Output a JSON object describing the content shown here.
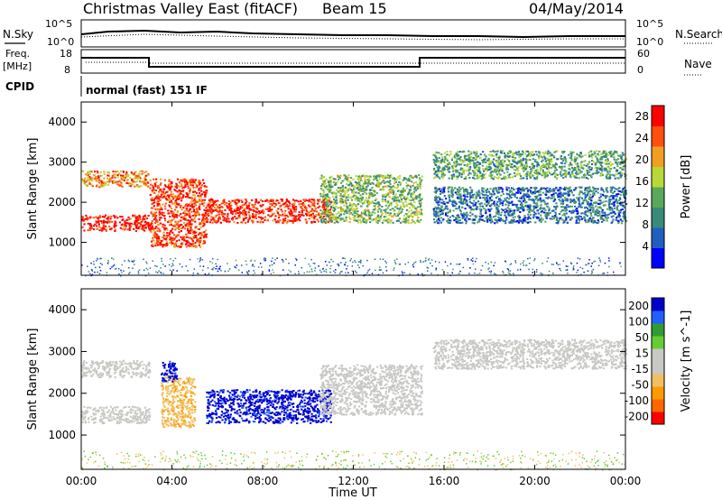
{
  "header": {
    "title": "Christmas Valley East (fitACF)",
    "beam": "Beam 15",
    "date": "04/May/2014"
  },
  "top_panels": {
    "nsky_label": "N.Sky",
    "nsearch_label": "N.Search",
    "noise_ticks": [
      "10^5",
      "10^0"
    ],
    "freq_label": "Freq.",
    "freq_unit": "[MHz]",
    "freq_ticks": [
      "18",
      "8"
    ],
    "nave_label": "Nave",
    "nave_ticks": [
      "60",
      "0"
    ],
    "cpid_label": "CPID",
    "cpid_text": "normal (fast) 151 IF"
  },
  "chart_data": [
    {
      "type": "heatmap",
      "title": "",
      "xlabel": "Time UT",
      "ylabel": "Slant Range [km]",
      "x_ticks": [
        "00:00",
        "04:00",
        "08:00",
        "12:00",
        "16:00",
        "20:00",
        "00:00"
      ],
      "y_ticks": [
        "1000",
        "2000",
        "3000",
        "4000"
      ],
      "xlim_hours": [
        0,
        24
      ],
      "ylim_km": [
        180,
        4500
      ],
      "colorbar": {
        "label": "Power [dB]",
        "ticks": [
          "4",
          "8",
          "12",
          "16",
          "20",
          "24",
          "28"
        ],
        "range": [
          0,
          30
        ],
        "colors": [
          "#0000ff",
          "#1f5fbf",
          "#3a8a7a",
          "#5aa85a",
          "#b8d83a",
          "#f0a020",
          "#ff5010",
          "#ff0000"
        ]
      },
      "features": [
        {
          "name": "near band",
          "t": [
            0,
            3
          ],
          "range_km": [
            1300,
            1700
          ],
          "value": 28
        },
        {
          "name": "far band",
          "t": [
            0,
            3
          ],
          "range_km": [
            2400,
            2800
          ],
          "value": 22
        },
        {
          "name": "rising arc",
          "t": [
            3,
            5.5
          ],
          "range_km": [
            900,
            2600
          ],
          "value": 26
        },
        {
          "name": "morning patch",
          "t": [
            5.5,
            11
          ],
          "range_km": [
            1500,
            2100
          ],
          "value": 27
        },
        {
          "name": "descending streak",
          "t": [
            10.5,
            15
          ],
          "range_km": [
            1500,
            2700
          ],
          "value": 14
        },
        {
          "name": "evening arc",
          "t": [
            15.5,
            24
          ],
          "range_km": [
            2600,
            3300
          ],
          "value": 12
        },
        {
          "name": "lower evening arc",
          "t": [
            15.5,
            24
          ],
          "range_km": [
            1500,
            2400
          ],
          "value": 8
        }
      ]
    },
    {
      "type": "heatmap",
      "title": "",
      "xlabel": "Time UT",
      "ylabel": "Slant Range [km]",
      "x_ticks": [
        "00:00",
        "04:00",
        "08:00",
        "12:00",
        "16:00",
        "20:00",
        "00:00"
      ],
      "y_ticks": [
        "1000",
        "2000",
        "3000",
        "4000"
      ],
      "xlim_hours": [
        0,
        24
      ],
      "ylim_km": [
        180,
        4500
      ],
      "colorbar": {
        "label": "Velocity [m s^-1]",
        "ticks": [
          "200",
          "100",
          "50",
          "15",
          "-15",
          "-50",
          "-100",
          "-200"
        ],
        "range": [
          -250,
          250
        ],
        "colors": [
          "#ff0000",
          "#ff6600",
          "#ff9900",
          "#f0c060",
          "#c8c8c4",
          "#c8c8c4",
          "#66cc33",
          "#339933",
          "#2060ff",
          "#0000cc"
        ]
      },
      "features": [
        {
          "name": "near band",
          "t": [
            0,
            3
          ],
          "range_km": [
            1300,
            1700
          ],
          "value": 0
        },
        {
          "name": "far band",
          "t": [
            0,
            3
          ],
          "range_km": [
            2400,
            2800
          ],
          "value": 0
        },
        {
          "name": "orange streak",
          "t": [
            3.5,
            5
          ],
          "range_km": [
            1200,
            2400
          ],
          "value": -80
        },
        {
          "name": "blue blob",
          "t": [
            3.5,
            4.2
          ],
          "range_km": [
            2300,
            2800
          ],
          "value": 220
        },
        {
          "name": "morning patch",
          "t": [
            5.5,
            11
          ],
          "range_km": [
            1300,
            2100
          ],
          "value": 220
        },
        {
          "name": "descending streak",
          "t": [
            10.5,
            15
          ],
          "range_km": [
            1500,
            2700
          ],
          "value": 0
        },
        {
          "name": "evening arc",
          "t": [
            15.5,
            24
          ],
          "range_km": [
            2600,
            3300
          ],
          "value": 0
        }
      ]
    }
  ]
}
